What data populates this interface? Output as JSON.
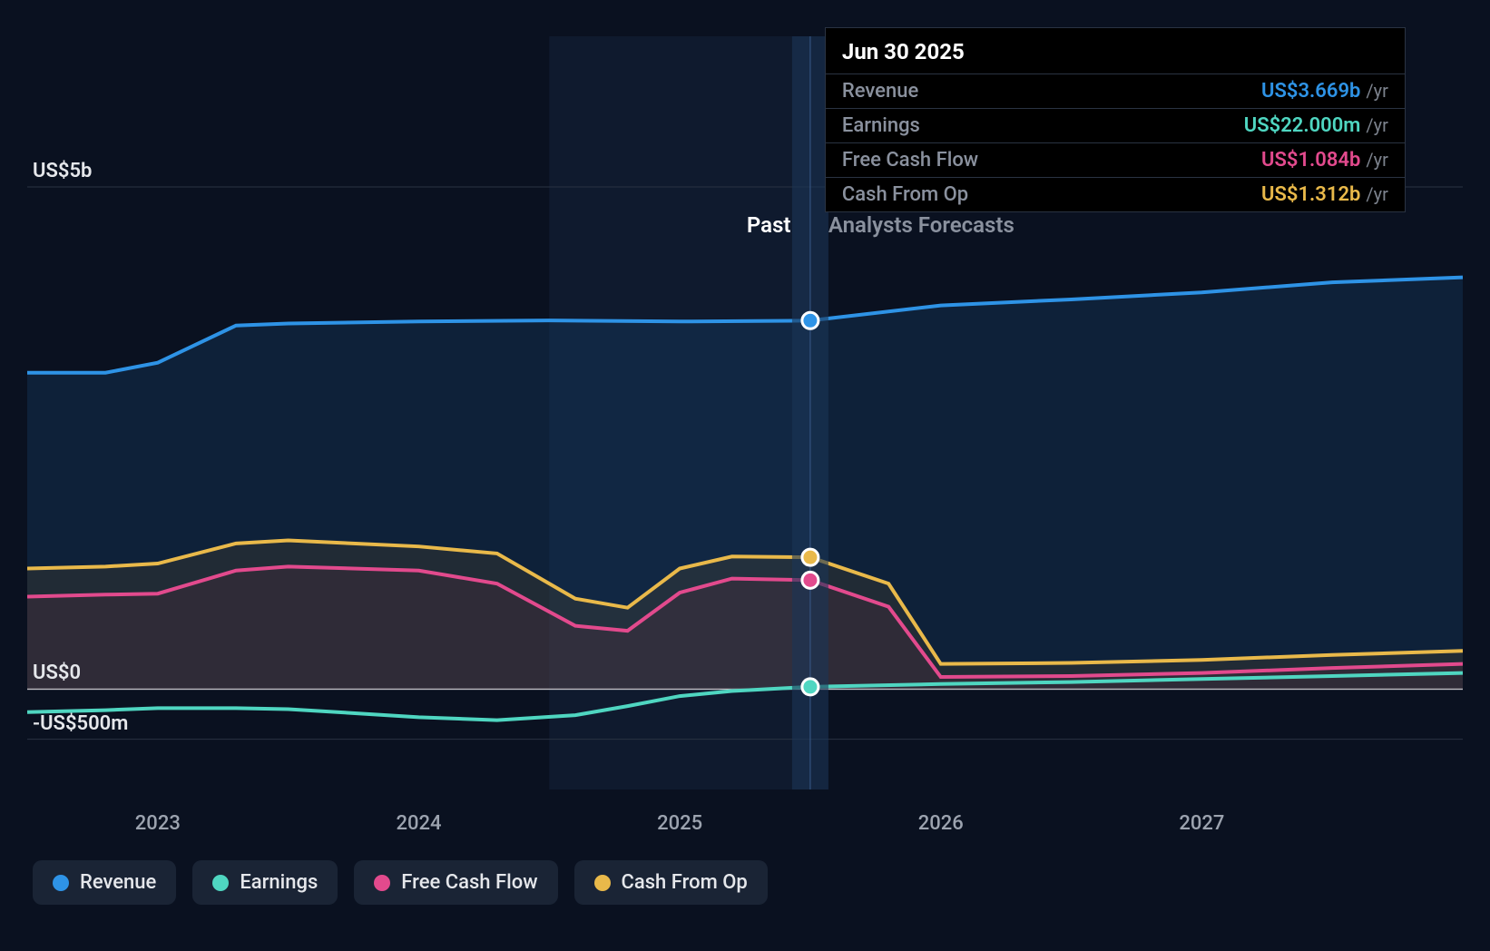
{
  "chart": {
    "type": "line-area",
    "background_color": "#0a1120",
    "grid_color": "#2a3342",
    "zero_line_color": "#e5e7eb",
    "past_region_fill": "#14223a",
    "past_region_opacity": 0.55,
    "hover_band_fill": "#1a3557",
    "hover_band_opacity": 0.6,
    "x": {
      "start": 2022.5,
      "end": 2028.0,
      "ticks": [
        2023,
        2024,
        2025,
        2026,
        2027
      ],
      "tick_labels": [
        "2023",
        "2024",
        "2025",
        "2026",
        "2027"
      ],
      "divider": 2025.5,
      "past_region_start": 2024.5,
      "divider_labels": {
        "left": "Past",
        "right": "Analysts Forecasts"
      },
      "divider_label_colors": {
        "left": "#ffffff",
        "right": "#8a919e"
      },
      "hover_x": 2025.5
    },
    "y": {
      "min": -1000,
      "max": 6500,
      "ticks": [
        -500,
        0,
        5000
      ],
      "tick_labels": [
        "-US$500m",
        "US$0",
        "US$5b"
      ]
    },
    "series": [
      {
        "id": "revenue",
        "label": "Revenue",
        "color": "#2e93e6",
        "area_fill": "#1a4b7a",
        "area_opacity": 0.28,
        "line_width": 4,
        "points": [
          [
            2022.5,
            3150
          ],
          [
            2022.8,
            3150
          ],
          [
            2023.0,
            3250
          ],
          [
            2023.3,
            3620
          ],
          [
            2023.5,
            3640
          ],
          [
            2024.0,
            3660
          ],
          [
            2024.5,
            3670
          ],
          [
            2025.0,
            3660
          ],
          [
            2025.5,
            3669
          ],
          [
            2026.0,
            3820
          ],
          [
            2026.5,
            3880
          ],
          [
            2027.0,
            3950
          ],
          [
            2027.5,
            4050
          ],
          [
            2028.0,
            4100
          ]
        ]
      },
      {
        "id": "cash_from_op",
        "label": "Cash From Op",
        "color": "#e9b94a",
        "area_fill": "#5b4d2b",
        "area_opacity": 0.25,
        "line_width": 4,
        "points": [
          [
            2022.5,
            1200
          ],
          [
            2022.8,
            1220
          ],
          [
            2023.0,
            1250
          ],
          [
            2023.3,
            1450
          ],
          [
            2023.5,
            1480
          ],
          [
            2024.0,
            1420
          ],
          [
            2024.3,
            1350
          ],
          [
            2024.6,
            900
          ],
          [
            2024.8,
            810
          ],
          [
            2025.0,
            1200
          ],
          [
            2025.2,
            1320
          ],
          [
            2025.5,
            1312
          ],
          [
            2025.8,
            1050
          ],
          [
            2026.0,
            250
          ],
          [
            2026.5,
            260
          ],
          [
            2027.0,
            290
          ],
          [
            2027.5,
            340
          ],
          [
            2028.0,
            380
          ]
        ]
      },
      {
        "id": "free_cash_flow",
        "label": "Free Cash Flow",
        "color": "#e24a8d",
        "area_fill": "#5a2c3f",
        "area_opacity": 0.25,
        "line_width": 4,
        "points": [
          [
            2022.5,
            920
          ],
          [
            2022.8,
            940
          ],
          [
            2023.0,
            950
          ],
          [
            2023.3,
            1180
          ],
          [
            2023.5,
            1220
          ],
          [
            2024.0,
            1180
          ],
          [
            2024.3,
            1050
          ],
          [
            2024.6,
            630
          ],
          [
            2024.8,
            580
          ],
          [
            2025.0,
            960
          ],
          [
            2025.2,
            1100
          ],
          [
            2025.5,
            1084
          ],
          [
            2025.8,
            820
          ],
          [
            2026.0,
            120
          ],
          [
            2026.5,
            130
          ],
          [
            2027.0,
            160
          ],
          [
            2027.5,
            210
          ],
          [
            2028.0,
            250
          ]
        ]
      },
      {
        "id": "earnings",
        "label": "Earnings",
        "color": "#4fd6c1",
        "area_fill": "none",
        "area_opacity": 0,
        "line_width": 4,
        "points": [
          [
            2022.5,
            -230
          ],
          [
            2022.8,
            -210
          ],
          [
            2023.0,
            -190
          ],
          [
            2023.3,
            -190
          ],
          [
            2023.5,
            -200
          ],
          [
            2024.0,
            -280
          ],
          [
            2024.3,
            -310
          ],
          [
            2024.6,
            -260
          ],
          [
            2024.8,
            -170
          ],
          [
            2025.0,
            -70
          ],
          [
            2025.2,
            -20
          ],
          [
            2025.5,
            22
          ],
          [
            2026.0,
            50
          ],
          [
            2026.5,
            70
          ],
          [
            2027.0,
            100
          ],
          [
            2027.5,
            130
          ],
          [
            2028.0,
            160
          ]
        ]
      }
    ],
    "hover_markers": [
      {
        "series_id": "revenue",
        "x": 2025.5,
        "y": 3669
      },
      {
        "series_id": "cash_from_op",
        "x": 2025.5,
        "y": 1312
      },
      {
        "series_id": "free_cash_flow",
        "x": 2025.5,
        "y": 1084
      },
      {
        "series_id": "earnings",
        "x": 2025.5,
        "y": 22
      }
    ]
  },
  "tooltip": {
    "date": "Jun 30 2025",
    "rows": [
      {
        "label": "Revenue",
        "value": "US$3.669b",
        "unit": "/yr",
        "color": "#2e93e6"
      },
      {
        "label": "Earnings",
        "value": "US$22.000m",
        "unit": "/yr",
        "color": "#4fd6c1"
      },
      {
        "label": "Free Cash Flow",
        "value": "US$1.084b",
        "unit": "/yr",
        "color": "#e24a8d"
      },
      {
        "label": "Cash From Op",
        "value": "US$1.312b",
        "unit": "/yr",
        "color": "#e9b94a"
      }
    ]
  },
  "legend": [
    {
      "label": "Revenue",
      "color": "#2e93e6"
    },
    {
      "label": "Earnings",
      "color": "#4fd6c1"
    },
    {
      "label": "Free Cash Flow",
      "color": "#e24a8d"
    },
    {
      "label": "Cash From Op",
      "color": "#e9b94a"
    }
  ]
}
